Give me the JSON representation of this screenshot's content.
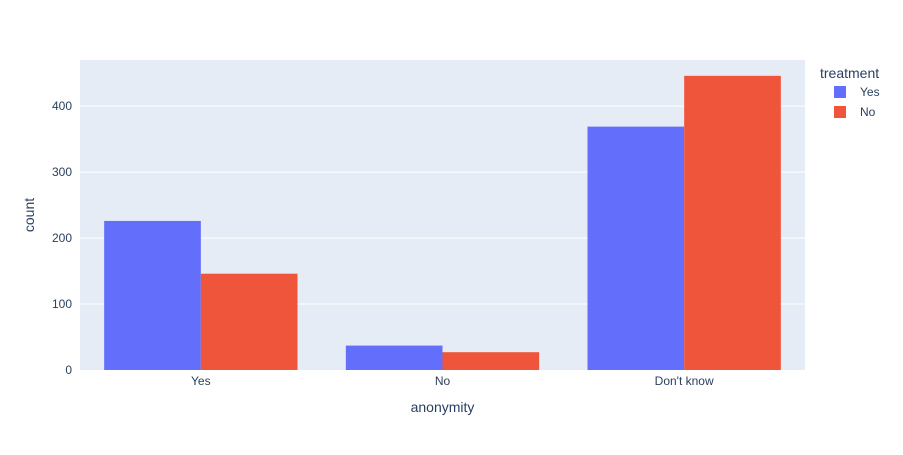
{
  "chart_data": {
    "type": "bar",
    "barmode": "group",
    "categories": [
      "Yes",
      "No",
      "Don't know"
    ],
    "series": [
      {
        "name": "Yes",
        "values": [
          226,
          37,
          369
        ],
        "color": "#636efa"
      },
      {
        "name": "No",
        "values": [
          146,
          27,
          446
        ],
        "color": "#ef553b"
      }
    ],
    "xlabel": "anonymity",
    "ylabel": "count",
    "ylim": [
      0,
      470
    ],
    "yticks": [
      0,
      100,
      200,
      300,
      400
    ],
    "legend": {
      "title": "treatment",
      "position": "top-right"
    },
    "grid": true,
    "plot_background": "#e5ecf6",
    "gridline_color": "#ffffff",
    "text_color": "#2a3f5f"
  }
}
